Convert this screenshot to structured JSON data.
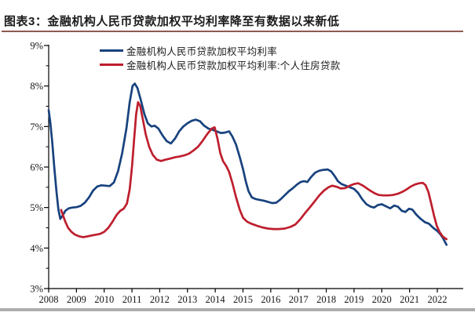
{
  "header": {
    "prefix": "图表3：",
    "title": "金融机构人民币贷款加权平均利率降至有数据以来新低"
  },
  "legend": [
    {
      "label": "金融机构人民币贷款加权平均利率",
      "color": "#17427E"
    },
    {
      "label": "金融机构人民币贷款加权平均利率:个人住房贷款",
      "color": "#BE1E2D"
    }
  ],
  "colors": {
    "series_general": "#17427E",
    "series_mortgage": "#BE1E2D",
    "axis": "#000000",
    "title_rule": "#8f5a52",
    "bottom_bar": "#aeaeae"
  },
  "chart_data": {
    "type": "line",
    "title": "金融机构人民币贷款加权平均利率降至有数据以来新低",
    "xlabel": "",
    "ylabel": "",
    "grid": false,
    "legend_position": "top",
    "ylim": [
      3,
      9
    ],
    "xlim": [
      2008,
      2022.45
    ],
    "y_ticks": [
      {
        "v": 9,
        "label": "9%"
      },
      {
        "v": 8,
        "label": "8%"
      },
      {
        "v": 7,
        "label": "7%"
      },
      {
        "v": 6,
        "label": "6%"
      },
      {
        "v": 5,
        "label": "5%"
      },
      {
        "v": 4,
        "label": "4%"
      },
      {
        "v": 3,
        "label": "3%"
      }
    ],
    "y_minor_ticks": [
      8.5,
      7.5,
      6.5,
      5.5,
      4.5,
      3.5
    ],
    "x_ticks": [
      {
        "v": 2008,
        "label": "2008"
      },
      {
        "v": 2009,
        "label": "2009"
      },
      {
        "v": 2010,
        "label": "2010"
      },
      {
        "v": 2011,
        "label": "2011"
      },
      {
        "v": 2012,
        "label": "2012"
      },
      {
        "v": 2013,
        "label": "2013"
      },
      {
        "v": 2014,
        "label": "2014"
      },
      {
        "v": 2015,
        "label": "2015"
      },
      {
        "v": 2016,
        "label": "2016"
      },
      {
        "v": 2017,
        "label": "2017"
      },
      {
        "v": 2018,
        "label": "2018"
      },
      {
        "v": 2019,
        "label": "2019"
      },
      {
        "v": 2020,
        "label": "2020"
      },
      {
        "v": 2021,
        "label": "2021"
      },
      {
        "v": 2022,
        "label": "2022"
      }
    ],
    "series": [
      {
        "name": "金融机构人民币贷款加权平均利率",
        "color": "#17427E",
        "points": [
          [
            2008.0,
            7.4
          ],
          [
            2008.06,
            7.1
          ],
          [
            2008.13,
            6.6
          ],
          [
            2008.2,
            6.0
          ],
          [
            2008.28,
            5.4
          ],
          [
            2008.35,
            4.95
          ],
          [
            2008.42,
            4.72
          ],
          [
            2008.5,
            4.8
          ],
          [
            2008.6,
            4.92
          ],
          [
            2008.72,
            4.98
          ],
          [
            2008.85,
            5.0
          ],
          [
            2009.0,
            5.01
          ],
          [
            2009.15,
            5.04
          ],
          [
            2009.3,
            5.12
          ],
          [
            2009.45,
            5.25
          ],
          [
            2009.6,
            5.42
          ],
          [
            2009.75,
            5.52
          ],
          [
            2009.9,
            5.55
          ],
          [
            2010.05,
            5.54
          ],
          [
            2010.2,
            5.53
          ],
          [
            2010.35,
            5.62
          ],
          [
            2010.5,
            5.9
          ],
          [
            2010.65,
            6.35
          ],
          [
            2010.8,
            6.95
          ],
          [
            2010.92,
            7.6
          ],
          [
            2011.02,
            8.0
          ],
          [
            2011.1,
            8.06
          ],
          [
            2011.2,
            7.95
          ],
          [
            2011.32,
            7.65
          ],
          [
            2011.45,
            7.3
          ],
          [
            2011.57,
            7.08
          ],
          [
            2011.7,
            7.0
          ],
          [
            2011.82,
            7.02
          ],
          [
            2011.95,
            6.95
          ],
          [
            2012.1,
            6.78
          ],
          [
            2012.25,
            6.64
          ],
          [
            2012.4,
            6.58
          ],
          [
            2012.55,
            6.7
          ],
          [
            2012.7,
            6.88
          ],
          [
            2012.85,
            7.0
          ],
          [
            2013.0,
            7.08
          ],
          [
            2013.15,
            7.14
          ],
          [
            2013.3,
            7.17
          ],
          [
            2013.45,
            7.13
          ],
          [
            2013.6,
            7.02
          ],
          [
            2013.75,
            6.95
          ],
          [
            2013.9,
            6.92
          ],
          [
            2014.05,
            6.88
          ],
          [
            2014.2,
            6.84
          ],
          [
            2014.35,
            6.85
          ],
          [
            2014.5,
            6.88
          ],
          [
            2014.62,
            6.75
          ],
          [
            2014.75,
            6.55
          ],
          [
            2014.88,
            6.25
          ],
          [
            2015.0,
            5.95
          ],
          [
            2015.1,
            5.65
          ],
          [
            2015.2,
            5.4
          ],
          [
            2015.32,
            5.25
          ],
          [
            2015.45,
            5.21
          ],
          [
            2015.6,
            5.19
          ],
          [
            2015.75,
            5.17
          ],
          [
            2015.9,
            5.14
          ],
          [
            2016.05,
            5.11
          ],
          [
            2016.2,
            5.12
          ],
          [
            2016.35,
            5.2
          ],
          [
            2016.5,
            5.3
          ],
          [
            2016.65,
            5.4
          ],
          [
            2016.8,
            5.48
          ],
          [
            2016.95,
            5.57
          ],
          [
            2017.08,
            5.63
          ],
          [
            2017.2,
            5.65
          ],
          [
            2017.32,
            5.63
          ],
          [
            2017.45,
            5.75
          ],
          [
            2017.6,
            5.86
          ],
          [
            2017.75,
            5.91
          ],
          [
            2017.9,
            5.93
          ],
          [
            2018.05,
            5.94
          ],
          [
            2018.18,
            5.89
          ],
          [
            2018.3,
            5.78
          ],
          [
            2018.42,
            5.65
          ],
          [
            2018.55,
            5.58
          ],
          [
            2018.7,
            5.54
          ],
          [
            2018.85,
            5.5
          ],
          [
            2019.0,
            5.46
          ],
          [
            2019.15,
            5.36
          ],
          [
            2019.3,
            5.2
          ],
          [
            2019.45,
            5.08
          ],
          [
            2019.6,
            5.02
          ],
          [
            2019.72,
            5.0
          ],
          [
            2019.85,
            5.06
          ],
          [
            2020.0,
            5.08
          ],
          [
            2020.15,
            5.03
          ],
          [
            2020.3,
            4.98
          ],
          [
            2020.45,
            5.05
          ],
          [
            2020.58,
            5.02
          ],
          [
            2020.72,
            4.92
          ],
          [
            2020.85,
            4.89
          ],
          [
            2020.98,
            4.97
          ],
          [
            2021.1,
            4.95
          ],
          [
            2021.25,
            4.82
          ],
          [
            2021.4,
            4.72
          ],
          [
            2021.55,
            4.64
          ],
          [
            2021.7,
            4.6
          ],
          [
            2021.85,
            4.5
          ],
          [
            2022.0,
            4.42
          ],
          [
            2022.1,
            4.35
          ],
          [
            2022.2,
            4.25
          ],
          [
            2022.33,
            4.08
          ]
        ]
      },
      {
        "name": "金融机构人民币贷款加权平均利率:个人住房贷款",
        "color": "#BE1E2D",
        "points": [
          [
            2008.45,
            4.94
          ],
          [
            2008.52,
            4.8
          ],
          [
            2008.6,
            4.65
          ],
          [
            2008.7,
            4.5
          ],
          [
            2008.82,
            4.4
          ],
          [
            2008.95,
            4.33
          ],
          [
            2009.1,
            4.29
          ],
          [
            2009.25,
            4.27
          ],
          [
            2009.4,
            4.29
          ],
          [
            2009.55,
            4.31
          ],
          [
            2009.7,
            4.33
          ],
          [
            2009.85,
            4.35
          ],
          [
            2010.0,
            4.4
          ],
          [
            2010.15,
            4.5
          ],
          [
            2010.3,
            4.65
          ],
          [
            2010.45,
            4.82
          ],
          [
            2010.58,
            4.92
          ],
          [
            2010.7,
            4.97
          ],
          [
            2010.82,
            5.1
          ],
          [
            2010.92,
            5.45
          ],
          [
            2011.0,
            6.0
          ],
          [
            2011.08,
            6.7
          ],
          [
            2011.15,
            7.3
          ],
          [
            2011.22,
            7.6
          ],
          [
            2011.3,
            7.5
          ],
          [
            2011.4,
            7.15
          ],
          [
            2011.5,
            6.8
          ],
          [
            2011.62,
            6.5
          ],
          [
            2011.75,
            6.3
          ],
          [
            2011.9,
            6.18
          ],
          [
            2012.05,
            6.15
          ],
          [
            2012.2,
            6.18
          ],
          [
            2012.38,
            6.21
          ],
          [
            2012.55,
            6.24
          ],
          [
            2012.72,
            6.26
          ],
          [
            2012.9,
            6.29
          ],
          [
            2013.05,
            6.33
          ],
          [
            2013.2,
            6.4
          ],
          [
            2013.38,
            6.5
          ],
          [
            2013.55,
            6.65
          ],
          [
            2013.72,
            6.82
          ],
          [
            2013.88,
            6.95
          ],
          [
            2013.98,
            6.98
          ],
          [
            2014.08,
            6.7
          ],
          [
            2014.18,
            6.35
          ],
          [
            2014.28,
            6.15
          ],
          [
            2014.4,
            6.02
          ],
          [
            2014.5,
            5.88
          ],
          [
            2014.62,
            5.6
          ],
          [
            2014.75,
            5.25
          ],
          [
            2014.88,
            4.95
          ],
          [
            2015.0,
            4.75
          ],
          [
            2015.15,
            4.65
          ],
          [
            2015.3,
            4.6
          ],
          [
            2015.5,
            4.55
          ],
          [
            2015.7,
            4.51
          ],
          [
            2015.9,
            4.48
          ],
          [
            2016.1,
            4.47
          ],
          [
            2016.3,
            4.47
          ],
          [
            2016.5,
            4.48
          ],
          [
            2016.7,
            4.52
          ],
          [
            2016.88,
            4.58
          ],
          [
            2017.05,
            4.7
          ],
          [
            2017.22,
            4.85
          ],
          [
            2017.4,
            5.0
          ],
          [
            2017.58,
            5.15
          ],
          [
            2017.75,
            5.3
          ],
          [
            2017.92,
            5.42
          ],
          [
            2018.08,
            5.5
          ],
          [
            2018.22,
            5.54
          ],
          [
            2018.38,
            5.51
          ],
          [
            2018.52,
            5.47
          ],
          [
            2018.68,
            5.48
          ],
          [
            2018.85,
            5.54
          ],
          [
            2019.0,
            5.58
          ],
          [
            2019.15,
            5.6
          ],
          [
            2019.3,
            5.55
          ],
          [
            2019.45,
            5.48
          ],
          [
            2019.6,
            5.41
          ],
          [
            2019.75,
            5.35
          ],
          [
            2019.9,
            5.31
          ],
          [
            2020.05,
            5.3
          ],
          [
            2020.22,
            5.3
          ],
          [
            2020.4,
            5.31
          ],
          [
            2020.58,
            5.34
          ],
          [
            2020.75,
            5.39
          ],
          [
            2020.9,
            5.45
          ],
          [
            2021.05,
            5.52
          ],
          [
            2021.2,
            5.57
          ],
          [
            2021.35,
            5.6
          ],
          [
            2021.48,
            5.61
          ],
          [
            2021.58,
            5.55
          ],
          [
            2021.68,
            5.38
          ],
          [
            2021.78,
            5.1
          ],
          [
            2021.88,
            4.8
          ],
          [
            2021.98,
            4.55
          ],
          [
            2022.08,
            4.4
          ],
          [
            2022.2,
            4.28
          ],
          [
            2022.33,
            4.22
          ]
        ]
      }
    ]
  }
}
